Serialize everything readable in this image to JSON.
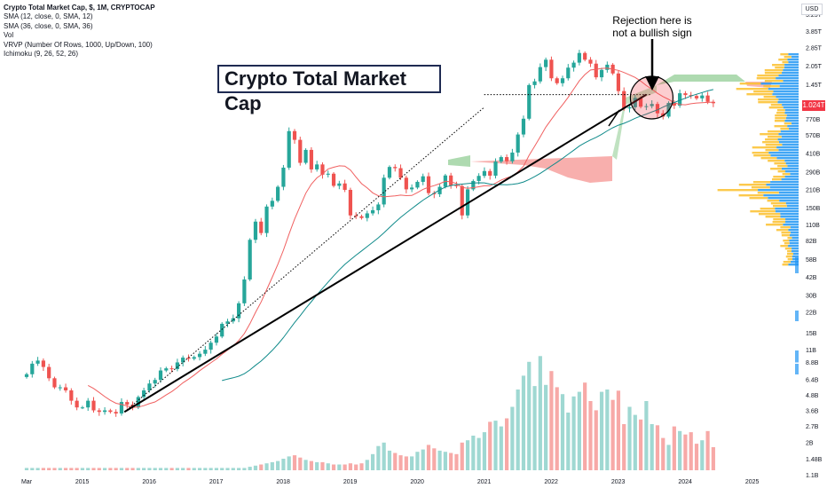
{
  "legend": {
    "title": "Crypto Total Market Cap, $, 1M, CRYPTOCAP",
    "sma12": "SMA (12, close, 0, SMA, 12)",
    "sma36": "SMA (36, close, 0, SMA, 36)",
    "vol": "Vol",
    "vrvp": "VRVP (Number Of Rows, 1000, Up/Down, 100)",
    "ichimoku": "Ichimoku (9, 26, 52, 26)"
  },
  "title_box": "Crypto Total Market Cap",
  "annotation": {
    "line1": "Rejection here is",
    "line2": "not a bullish sign"
  },
  "currency": "USD",
  "current_price_label": "1.024T",
  "colors": {
    "up": "#26a69a",
    "down": "#ef5350",
    "sma12": "#f06060",
    "sma36": "#0f8a8a",
    "vol_up": "#9fd8d2",
    "vol_down": "#f7a9a7",
    "cloud_red": "#f7a6a4",
    "cloud_green": "#a5d6a7",
    "vrvp_up": "#2196f3",
    "vrvp_down": "#fbc02d"
  },
  "chart_data": {
    "type": "candlestick",
    "title": "Crypto Total Market Cap",
    "x_tick_labels": [
      "Mar",
      "2015",
      "2016",
      "2017",
      "2018",
      "2019",
      "2020",
      "2021",
      "2022",
      "2023",
      "2024",
      "2025"
    ],
    "x_tick_years": [
      2014.17,
      2015,
      2016,
      2017,
      2018,
      2019,
      2020,
      2021,
      2022,
      2023,
      2024,
      2025
    ],
    "y_scale": "log",
    "y_tick_labels": [
      "5.25T",
      "3.85T",
      "2.85T",
      "2.05T",
      "1.45T",
      "770B",
      "570B",
      "410B",
      "290B",
      "210B",
      "150B",
      "110B",
      "82B",
      "58B",
      "42B",
      "30B",
      "22B",
      "15B",
      "11B",
      "8.8B",
      "6.4B",
      "4.8B",
      "3.6B",
      "2.7B",
      "2B",
      "1.48B",
      "1.1B"
    ],
    "y_tick_values": [
      5250000000000.0,
      3850000000000.0,
      2850000000000.0,
      2050000000000.0,
      1450000000000.0,
      770000000000.0,
      570000000000.0,
      410000000000.0,
      290000000000.0,
      210000000000.0,
      150000000000.0,
      110000000000.0,
      82000000000.0,
      58000000000.0,
      42000000000.0,
      30000000000.0,
      22000000000.0,
      15000000000.0,
      11000000000.0,
      8800000000.0,
      6400000000.0,
      4800000000.0,
      3600000000.0,
      2700000000.0,
      2000000000.0,
      1480000000.0,
      1100000000.0
    ],
    "ylim": [
      1050000000.0,
      6200000000000.0
    ],
    "closes": [
      7000000000.0,
      8500000000.0,
      9000000000.0,
      8000000000.0,
      6500000000.0,
      5500000000.0,
      5500000000.0,
      5200000000.0,
      4300000000.0,
      3800000000.0,
      3800000000.0,
      4300000000.0,
      3600000000.0,
      3500000000.0,
      3600000000.0,
      3500000000.0,
      3400000000.0,
      4200000000.0,
      4000000000.0,
      3800000000.0,
      4600000000.0,
      5200000000.0,
      5900000000.0,
      6300000000.0,
      7500000000.0,
      7800000000.0,
      7700000000.0,
      8700000000.0,
      9500000000.0,
      9300000000.0,
      9600000000.0,
      10200000000.0,
      11000000000.0,
      12500000000.0,
      14000000000.0,
      17700000000.0,
      18500000000.0,
      19600000000.0,
      25800000000.0,
      40000000000.0,
      83000000000.0,
      116000000000.0,
      94000000000.0,
      153000000000.0,
      170000000000.0,
      220000000000.0,
      313000000000.0,
      613000000000.0,
      522000000000.0,
      342000000000.0,
      434000000000.0,
      303000000000.0,
      332000000000.0,
      275000000000.0,
      280000000000.0,
      224000000000.0,
      234000000000.0,
      208000000000.0,
      130000000000.0,
      128000000000.0,
      124000000000.0,
      135000000000.0,
      143000000000.0,
      159000000000.0,
      260000000000.0,
      317000000000.0,
      310000000000.0,
      260000000000.0,
      210000000000.0,
      217000000000.0,
      241000000000.0,
      267000000000.0,
      196000000000.0,
      192000000000.0,
      220000000000.0,
      271000000000.0,
      226000000000.0,
      223000000000.0,
      130000000000.0,
      210000000000.0,
      245000000000.0,
      269000000000.0,
      294000000000.0,
      270000000000.0,
      350000000000.0,
      380000000000.0,
      352000000000.0,
      413000000000.0,
      576000000000.0,
      770000000000.0,
      1430000000000.0,
      1530000000000.0,
      1990000000000.0,
      2280000000000.0,
      1620000000000.0,
      1480000000000.0,
      1620000000000.0,
      1970000000000.0,
      2160000000000.0,
      2580000000000.0,
      2280000000000.0,
      2120000000000.0,
      1650000000000.0,
      1890000000000.0,
      2080000000000.0,
      1770000000000.0,
      1280000000000.0,
      930000000000.0,
      950000000000.0,
      1130000000000.0,
      960000000000.0,
      970000000000.0,
      1010000000000.0,
      850000000000.0,
      800000000000.0,
      1030000000000.0,
      980000000000.0,
      1230000000000.0,
      1190000000000.0,
      1170000000000.0,
      1120000000000.0,
      1180000000000.0,
      1050000000000.0,
      1024000000000.0
    ],
    "volumes_relative": [
      0.02,
      0.02,
      0.02,
      0.02,
      0.02,
      0.02,
      0.02,
      0.02,
      0.02,
      0.02,
      0.02,
      0.02,
      0.02,
      0.02,
      0.02,
      0.02,
      0.02,
      0.02,
      0.02,
      0.02,
      0.02,
      0.02,
      0.02,
      0.02,
      0.02,
      0.02,
      0.02,
      0.02,
      0.02,
      0.02,
      0.02,
      0.02,
      0.02,
      0.02,
      0.02,
      0.02,
      0.02,
      0.02,
      0.02,
      0.02,
      0.03,
      0.04,
      0.05,
      0.06,
      0.07,
      0.08,
      0.1,
      0.12,
      0.13,
      0.11,
      0.09,
      0.08,
      0.07,
      0.07,
      0.06,
      0.05,
      0.05,
      0.05,
      0.06,
      0.05,
      0.06,
      0.09,
      0.14,
      0.21,
      0.24,
      0.17,
      0.15,
      0.13,
      0.12,
      0.12,
      0.16,
      0.18,
      0.22,
      0.19,
      0.17,
      0.16,
      0.15,
      0.14,
      0.24,
      0.26,
      0.3,
      0.28,
      0.33,
      0.42,
      0.43,
      0.38,
      0.45,
      0.55,
      0.7,
      0.82,
      0.94,
      0.73,
      0.99,
      0.74,
      0.86,
      0.72,
      0.66,
      0.5,
      0.64,
      0.68,
      0.76,
      0.6,
      0.52,
      0.68,
      0.7,
      0.61,
      0.69,
      0.4,
      0.55,
      0.48,
      0.44,
      0.6,
      0.4,
      0.39,
      0.28,
      0.22,
      0.38,
      0.34,
      0.31,
      0.33,
      0.23,
      0.26,
      0.34,
      0.2
    ],
    "trendlines": [
      {
        "name": "solid",
        "x": [
          2015.63,
          2023.42
        ],
        "y": [
          3500000000.0,
          1200000000000.0
        ]
      },
      {
        "name": "dotted",
        "x": [
          2015.63,
          2021.0
        ],
        "y": [
          3500000000.0,
          950000000000.0
        ]
      },
      {
        "name": "dotted-horizontal",
        "x": [
          2021.0,
          2023.5
        ],
        "y": [
          1200000000000.0,
          1200000000000.0
        ]
      }
    ],
    "annotation_circle": {
      "x": 2023.5,
      "y": 1150000000000.0
    }
  }
}
